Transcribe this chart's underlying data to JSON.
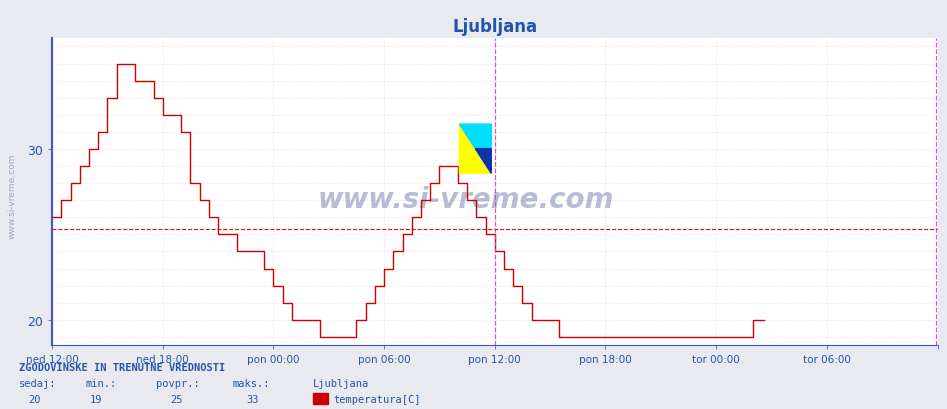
{
  "title": "Ljubljana",
  "title_color": "#2255aa",
  "title_fontsize": 12,
  "bg_color": "#e8eaf0",
  "plot_bg_color": "#ffffff",
  "grid_color_h": "#ffaaaa",
  "grid_color_v": "#ffaaaa",
  "avg_line_y": 25.3,
  "avg_line_color": "#cc0000",
  "line_color": "#cc0000",
  "left_spine_color": "#4455cc",
  "vline_main_color": "#cc44cc",
  "vline_right_color": "#cc44cc",
  "watermark": "www.si-vreme.com",
  "watermark_color": "#334488",
  "watermark_alpha": 0.35,
  "stats_header": "ZGODOVINSKE IN TRENUTNE VREDNOSTI",
  "stats_values": [
    20,
    19,
    25,
    33
  ],
  "stats_city": "Ljubljana",
  "stats_series": "temperatura[C]",
  "ylim": [
    18.5,
    36.5
  ],
  "ytick_positions": [
    20,
    30
  ],
  "ytick_labels": [
    "20",
    "30"
  ],
  "xtick_positions": [
    0,
    72,
    144,
    216,
    288,
    360,
    432,
    504,
    576
  ],
  "xtick_labels": [
    "ned 12:00",
    "ned 18:00",
    "pon 00:00",
    "pon 06:00",
    "pon 12:00",
    "pon 18:00",
    "tor 00:00",
    "tor 06:00",
    ""
  ],
  "vline_main_x": 288,
  "vline_right_x": 575,
  "temperature_data": [
    26,
    26,
    26,
    26,
    26,
    26,
    27,
    27,
    27,
    27,
    27,
    27,
    28,
    28,
    28,
    28,
    28,
    28,
    29,
    29,
    29,
    29,
    29,
    29,
    30,
    30,
    30,
    30,
    30,
    30,
    31,
    31,
    31,
    31,
    31,
    31,
    33,
    33,
    33,
    33,
    33,
    33,
    35,
    35,
    35,
    35,
    35,
    35,
    35,
    35,
    35,
    35,
    35,
    35,
    34,
    34,
    34,
    34,
    34,
    34,
    34,
    34,
    34,
    34,
    34,
    34,
    33,
    33,
    33,
    33,
    33,
    33,
    32,
    32,
    32,
    32,
    32,
    32,
    32,
    32,
    32,
    32,
    32,
    32,
    31,
    31,
    31,
    31,
    31,
    31,
    28,
    28,
    28,
    28,
    28,
    28,
    27,
    27,
    27,
    27,
    27,
    27,
    26,
    26,
    26,
    26,
    26,
    26,
    25,
    25,
    25,
    25,
    25,
    25,
    25,
    25,
    25,
    25,
    25,
    25,
    24,
    24,
    24,
    24,
    24,
    24,
    24,
    24,
    24,
    24,
    24,
    24,
    24,
    24,
    24,
    24,
    24,
    24,
    23,
    23,
    23,
    23,
    23,
    23,
    22,
    22,
    22,
    22,
    22,
    22,
    21,
    21,
    21,
    21,
    21,
    21,
    20,
    20,
    20,
    20,
    20,
    20,
    20,
    20,
    20,
    20,
    20,
    20,
    20,
    20,
    20,
    20,
    20,
    20,
    19,
    19,
    19,
    19,
    19,
    19,
    19,
    19,
    19,
    19,
    19,
    19,
    19,
    19,
    19,
    19,
    19,
    19,
    19,
    19,
    19,
    19,
    19,
    19,
    20,
    20,
    20,
    20,
    20,
    20,
    21,
    21,
    21,
    21,
    21,
    21,
    22,
    22,
    22,
    22,
    22,
    22,
    23,
    23,
    23,
    23,
    23,
    23,
    24,
    24,
    24,
    24,
    24,
    24,
    25,
    25,
    25,
    25,
    25,
    25,
    26,
    26,
    26,
    26,
    26,
    26,
    27,
    27,
    27,
    27,
    27,
    27,
    28,
    28,
    28,
    28,
    28,
    28,
    29,
    29,
    29,
    29,
    29,
    29,
    29,
    29,
    29,
    29,
    29,
    29,
    28,
    28,
    28,
    28,
    28,
    28,
    27,
    27,
    27,
    27,
    27,
    27,
    26,
    26,
    26,
    26,
    26,
    26,
    25,
    25,
    25,
    25,
    25,
    25,
    24,
    24,
    24,
    24,
    24,
    24,
    23,
    23,
    23,
    23,
    23,
    23,
    22,
    22,
    22,
    22,
    22,
    22,
    21,
    21,
    21,
    21,
    21,
    21,
    20,
    20,
    20,
    20,
    20,
    20,
    20,
    20,
    20,
    20,
    20,
    20,
    20,
    20,
    20,
    20,
    20,
    20,
    19,
    19,
    19,
    19,
    19,
    19,
    19,
    19,
    19,
    19,
    19,
    19,
    19,
    19,
    19,
    19,
    19,
    19,
    19,
    19,
    19,
    19,
    19,
    19,
    19,
    19,
    19,
    19,
    19,
    19,
    19,
    19,
    19,
    19,
    19,
    19,
    19,
    19,
    19,
    19,
    19,
    19,
    19,
    19,
    19,
    19,
    19,
    19,
    19,
    19,
    19,
    19,
    19,
    19,
    19,
    19,
    19,
    19,
    19,
    19,
    19,
    19,
    19,
    19,
    19,
    19,
    19,
    19,
    19,
    19,
    19,
    19,
    19,
    19,
    19,
    19,
    19,
    19,
    19,
    19,
    19,
    19,
    19,
    19,
    19,
    19,
    19,
    19,
    19,
    19,
    19,
    19,
    19,
    19,
    19,
    19,
    19,
    19,
    19,
    19,
    19,
    19,
    19,
    19,
    19,
    19,
    19,
    19,
    19,
    19,
    19,
    19,
    19,
    19,
    19,
    19,
    19,
    19,
    19,
    19,
    19,
    19,
    19,
    19,
    19,
    19,
    20,
    20,
    20,
    20,
    20,
    20,
    20,
    20
  ]
}
